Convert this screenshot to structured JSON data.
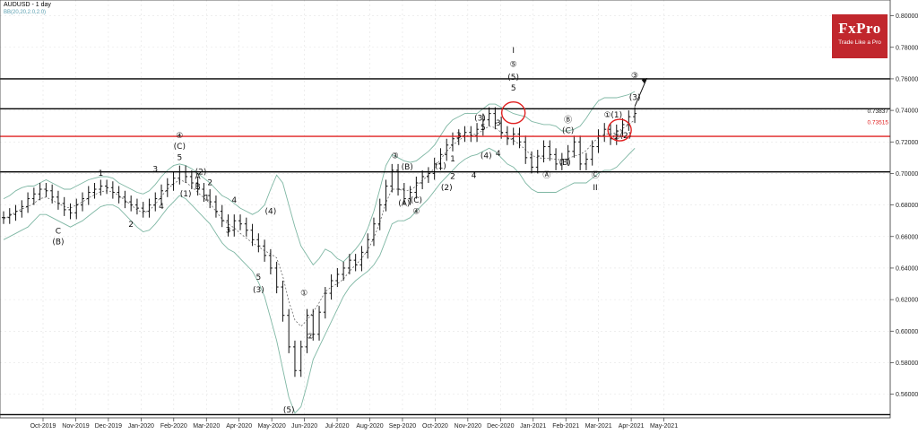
{
  "header": {
    "title": "AUDUSD - 1 day",
    "indicator": "BB(20,20,2.0,2.0)"
  },
  "logo": {
    "name": "FxPro",
    "tagline": "Trade Like a Pro"
  },
  "chart_data": {
    "type": "candlestick",
    "symbol": "AUDUSD",
    "timeframe": "1 day",
    "ylim": [
      0.545,
      0.81
    ],
    "y_ticks": [
      "0.80000",
      "0.78000",
      "0.76000",
      "0.74000",
      "0.72000",
      "0.70000",
      "0.68000",
      "0.66000",
      "0.64000",
      "0.62000",
      "0.60000",
      "0.58000",
      "0.56000"
    ],
    "x_ticks": [
      "Oct-2019",
      "Nov-2019",
      "Dec-2019",
      "Jan-2020",
      "Feb-2020",
      "Mar-2020",
      "Apr-2020",
      "May-2020",
      "Jun-2020",
      "Jul-2020",
      "Aug-2020",
      "Sep-2020",
      "Oct-2020",
      "Nov-2020",
      "Dec-2020",
      "Jan-2021",
      "Feb-2021",
      "Mar-2021",
      "Apr-2021",
      "May-2021"
    ],
    "price_labels": [
      "0.73837",
      "0.73515"
    ],
    "close": [
      0.672,
      0.674,
      0.676,
      0.679,
      0.684,
      0.687,
      0.69,
      0.689,
      0.685,
      0.681,
      0.677,
      0.675,
      0.68,
      0.684,
      0.688,
      0.69,
      0.692,
      0.691,
      0.688,
      0.685,
      0.682,
      0.68,
      0.678,
      0.676,
      0.68,
      0.684,
      0.689,
      0.693,
      0.697,
      0.701,
      0.698,
      0.694,
      0.69,
      0.686,
      0.682,
      0.676,
      0.67,
      0.664,
      0.67,
      0.668,
      0.664,
      0.658,
      0.654,
      0.648,
      0.64,
      0.628,
      0.61,
      0.59,
      0.575,
      0.59,
      0.61,
      0.598,
      0.612,
      0.624,
      0.632,
      0.636,
      0.64,
      0.645,
      0.642,
      0.65,
      0.658,
      0.668,
      0.68,
      0.692,
      0.702,
      0.69,
      0.684,
      0.688,
      0.694,
      0.698,
      0.7,
      0.706,
      0.712,
      0.718,
      0.722,
      0.724,
      0.726,
      0.724,
      0.728,
      0.734,
      0.738,
      0.732,
      0.726,
      0.722,
      0.725,
      0.72,
      0.71,
      0.704,
      0.711,
      0.717,
      0.712,
      0.706,
      0.709,
      0.714,
      0.72,
      0.706,
      0.709,
      0.717,
      0.724,
      0.728,
      0.722,
      0.727,
      0.731,
      0.736,
      0.738
    ],
    "bollinger": {
      "upper": [
        0.684,
        0.686,
        0.689,
        0.691,
        0.692,
        0.692,
        0.694,
        0.696,
        0.694,
        0.692,
        0.69,
        0.69,
        0.692,
        0.694,
        0.696,
        0.697,
        0.698,
        0.698,
        0.697,
        0.694,
        0.692,
        0.69,
        0.688,
        0.687,
        0.689,
        0.693,
        0.698,
        0.702,
        0.705,
        0.706,
        0.705,
        0.703,
        0.7,
        0.697,
        0.694,
        0.69,
        0.686,
        0.684,
        0.681,
        0.678,
        0.676,
        0.674,
        0.676,
        0.68,
        0.69,
        0.699,
        0.694,
        0.68,
        0.666,
        0.654,
        0.648,
        0.642,
        0.646,
        0.652,
        0.65,
        0.646,
        0.644,
        0.648,
        0.652,
        0.657,
        0.665,
        0.676,
        0.69,
        0.705,
        0.712,
        0.71,
        0.708,
        0.707,
        0.708,
        0.711,
        0.714,
        0.718,
        0.724,
        0.73,
        0.734,
        0.736,
        0.738,
        0.738,
        0.738,
        0.741,
        0.744,
        0.744,
        0.742,
        0.74,
        0.738,
        0.737,
        0.736,
        0.733,
        0.732,
        0.731,
        0.731,
        0.73,
        0.727,
        0.727,
        0.728,
        0.73,
        0.735,
        0.741,
        0.746,
        0.748,
        0.748,
        0.748,
        0.749,
        0.75,
        0.752
      ],
      "lower": [
        0.658,
        0.66,
        0.662,
        0.664,
        0.666,
        0.67,
        0.674,
        0.674,
        0.672,
        0.67,
        0.668,
        0.666,
        0.668,
        0.67,
        0.673,
        0.676,
        0.679,
        0.68,
        0.68,
        0.678,
        0.674,
        0.67,
        0.666,
        0.663,
        0.664,
        0.668,
        0.673,
        0.678,
        0.682,
        0.686,
        0.684,
        0.68,
        0.676,
        0.672,
        0.668,
        0.662,
        0.656,
        0.652,
        0.65,
        0.646,
        0.642,
        0.638,
        0.631,
        0.622,
        0.608,
        0.594,
        0.576,
        0.558,
        0.548,
        0.552,
        0.566,
        0.582,
        0.59,
        0.598,
        0.606,
        0.614,
        0.622,
        0.628,
        0.632,
        0.635,
        0.638,
        0.642,
        0.648,
        0.658,
        0.668,
        0.67,
        0.67,
        0.672,
        0.676,
        0.68,
        0.684,
        0.689,
        0.694,
        0.698,
        0.702,
        0.706,
        0.709,
        0.711,
        0.712,
        0.714,
        0.716,
        0.714,
        0.71,
        0.706,
        0.704,
        0.7,
        0.694,
        0.69,
        0.688,
        0.688,
        0.688,
        0.688,
        0.69,
        0.692,
        0.694,
        0.694,
        0.694,
        0.697,
        0.7,
        0.702,
        0.702,
        0.704,
        0.708,
        0.712,
        0.716
      ]
    },
    "horizontal_lines": [
      {
        "price": 0.76,
        "color": "#000000"
      },
      {
        "price": 0.741,
        "color": "#000000"
      },
      {
        "price": 0.7235,
        "color": "#e02020"
      },
      {
        "price": 0.701,
        "color": "#000000"
      },
      {
        "price": 0.547,
        "color": "#000000"
      }
    ],
    "wave_labels": [
      {
        "t": "1",
        "i": 16,
        "p": 0.6985
      },
      {
        "t": "C",
        "i": 9,
        "p": 0.662
      },
      {
        "t": "(B)",
        "i": 9,
        "p": 0.655
      },
      {
        "t": "2",
        "i": 21,
        "p": 0.666
      },
      {
        "t": "3",
        "i": 25,
        "p": 0.701
      },
      {
        "t": "4",
        "i": 26,
        "p": 0.6775
      },
      {
        "t": "④",
        "i": 29,
        "p": 0.7225
      },
      {
        "t": "(C)",
        "i": 29,
        "p": 0.7155
      },
      {
        "t": "5",
        "i": 29,
        "p": 0.7085
      },
      {
        "t": "(1)",
        "i": 30,
        "p": 0.6855
      },
      {
        "t": "A",
        "i": 32,
        "p": 0.6965
      },
      {
        "t": "(2)",
        "i": 32.5,
        "p": 0.6995
      },
      {
        "t": "B",
        "i": 32,
        "p": 0.69
      },
      {
        "t": "2",
        "i": 34,
        "p": 0.6925
      },
      {
        "t": "1",
        "i": 33.5,
        "p": 0.683
      },
      {
        "t": "4",
        "i": 38,
        "p": 0.6815
      },
      {
        "t": "3",
        "i": 37,
        "p": 0.6625
      },
      {
        "t": "(4)",
        "i": 44,
        "p": 0.6745
      },
      {
        "t": "5",
        "i": 42,
        "p": 0.6325
      },
      {
        "t": "(3)",
        "i": 42,
        "p": 0.6245
      },
      {
        "t": "①",
        "i": 49.5,
        "p": 0.6225
      },
      {
        "t": "②",
        "i": 50.5,
        "p": 0.595
      },
      {
        "t": "(5)",
        "i": 47,
        "p": 0.5485
      },
      {
        "t": "③",
        "i": 64.5,
        "p": 0.7095
      },
      {
        "t": "(B)",
        "i": 66.5,
        "p": 0.7025
      },
      {
        "t": "(A)",
        "i": 66,
        "p": 0.6795
      },
      {
        "t": "④",
        "i": 68,
        "p": 0.6745
      },
      {
        "t": "(C)",
        "i": 68,
        "p": 0.6815
      },
      {
        "t": "(1)",
        "i": 72,
        "p": 0.703
      },
      {
        "t": "(2)",
        "i": 73,
        "p": 0.6895
      },
      {
        "t": "1",
        "i": 74,
        "p": 0.7075
      },
      {
        "t": "2",
        "i": 74,
        "p": 0.6965
      },
      {
        "t": "3",
        "i": 75,
        "p": 0.7225
      },
      {
        "t": "4",
        "i": 77.5,
        "p": 0.697
      },
      {
        "t": "(3)",
        "i": 78.5,
        "p": 0.7335
      },
      {
        "t": "5",
        "i": 79,
        "p": 0.7275
      },
      {
        "t": "3",
        "i": 81.5,
        "p": 0.7305
      },
      {
        "t": "(4)",
        "i": 79.5,
        "p": 0.7095
      },
      {
        "t": "4",
        "i": 81.5,
        "p": 0.711
      },
      {
        "t": "I",
        "i": 84,
        "p": 0.7765
      },
      {
        "t": "⑤",
        "i": 84,
        "p": 0.7675
      },
      {
        "t": "(5)",
        "i": 84,
        "p": 0.7595
      },
      {
        "t": "5",
        "i": 84,
        "p": 0.7525
      },
      {
        "t": "Ⓐ",
        "i": 89.5,
        "p": 0.6975
      },
      {
        "t": "Ⓑ",
        "i": 93,
        "p": 0.7325
      },
      {
        "t": "(C)",
        "i": 93,
        "p": 0.7255
      },
      {
        "t": "(B)",
        "i": 92.5,
        "p": 0.7055
      },
      {
        "t": "Ⓒ",
        "i": 97.5,
        "p": 0.6975
      },
      {
        "t": "II",
        "i": 97.5,
        "p": 0.6895
      },
      {
        "t": "①",
        "i": 99.5,
        "p": 0.7355
      },
      {
        "t": "(1)",
        "i": 101,
        "p": 0.7355
      },
      {
        "t": "②",
        "i": 101,
        "p": 0.7215
      },
      {
        "t": "(2)",
        "i": 102.5,
        "p": 0.7225
      },
      {
        "t": "(3)",
        "i": 104,
        "p": 0.7465
      },
      {
        "t": "③",
        "i": 104,
        "p": 0.7605
      }
    ],
    "projection": {
      "from_i": 104,
      "from_p": 0.7425,
      "to_i": 106,
      "to_p": 0.7605
    }
  }
}
